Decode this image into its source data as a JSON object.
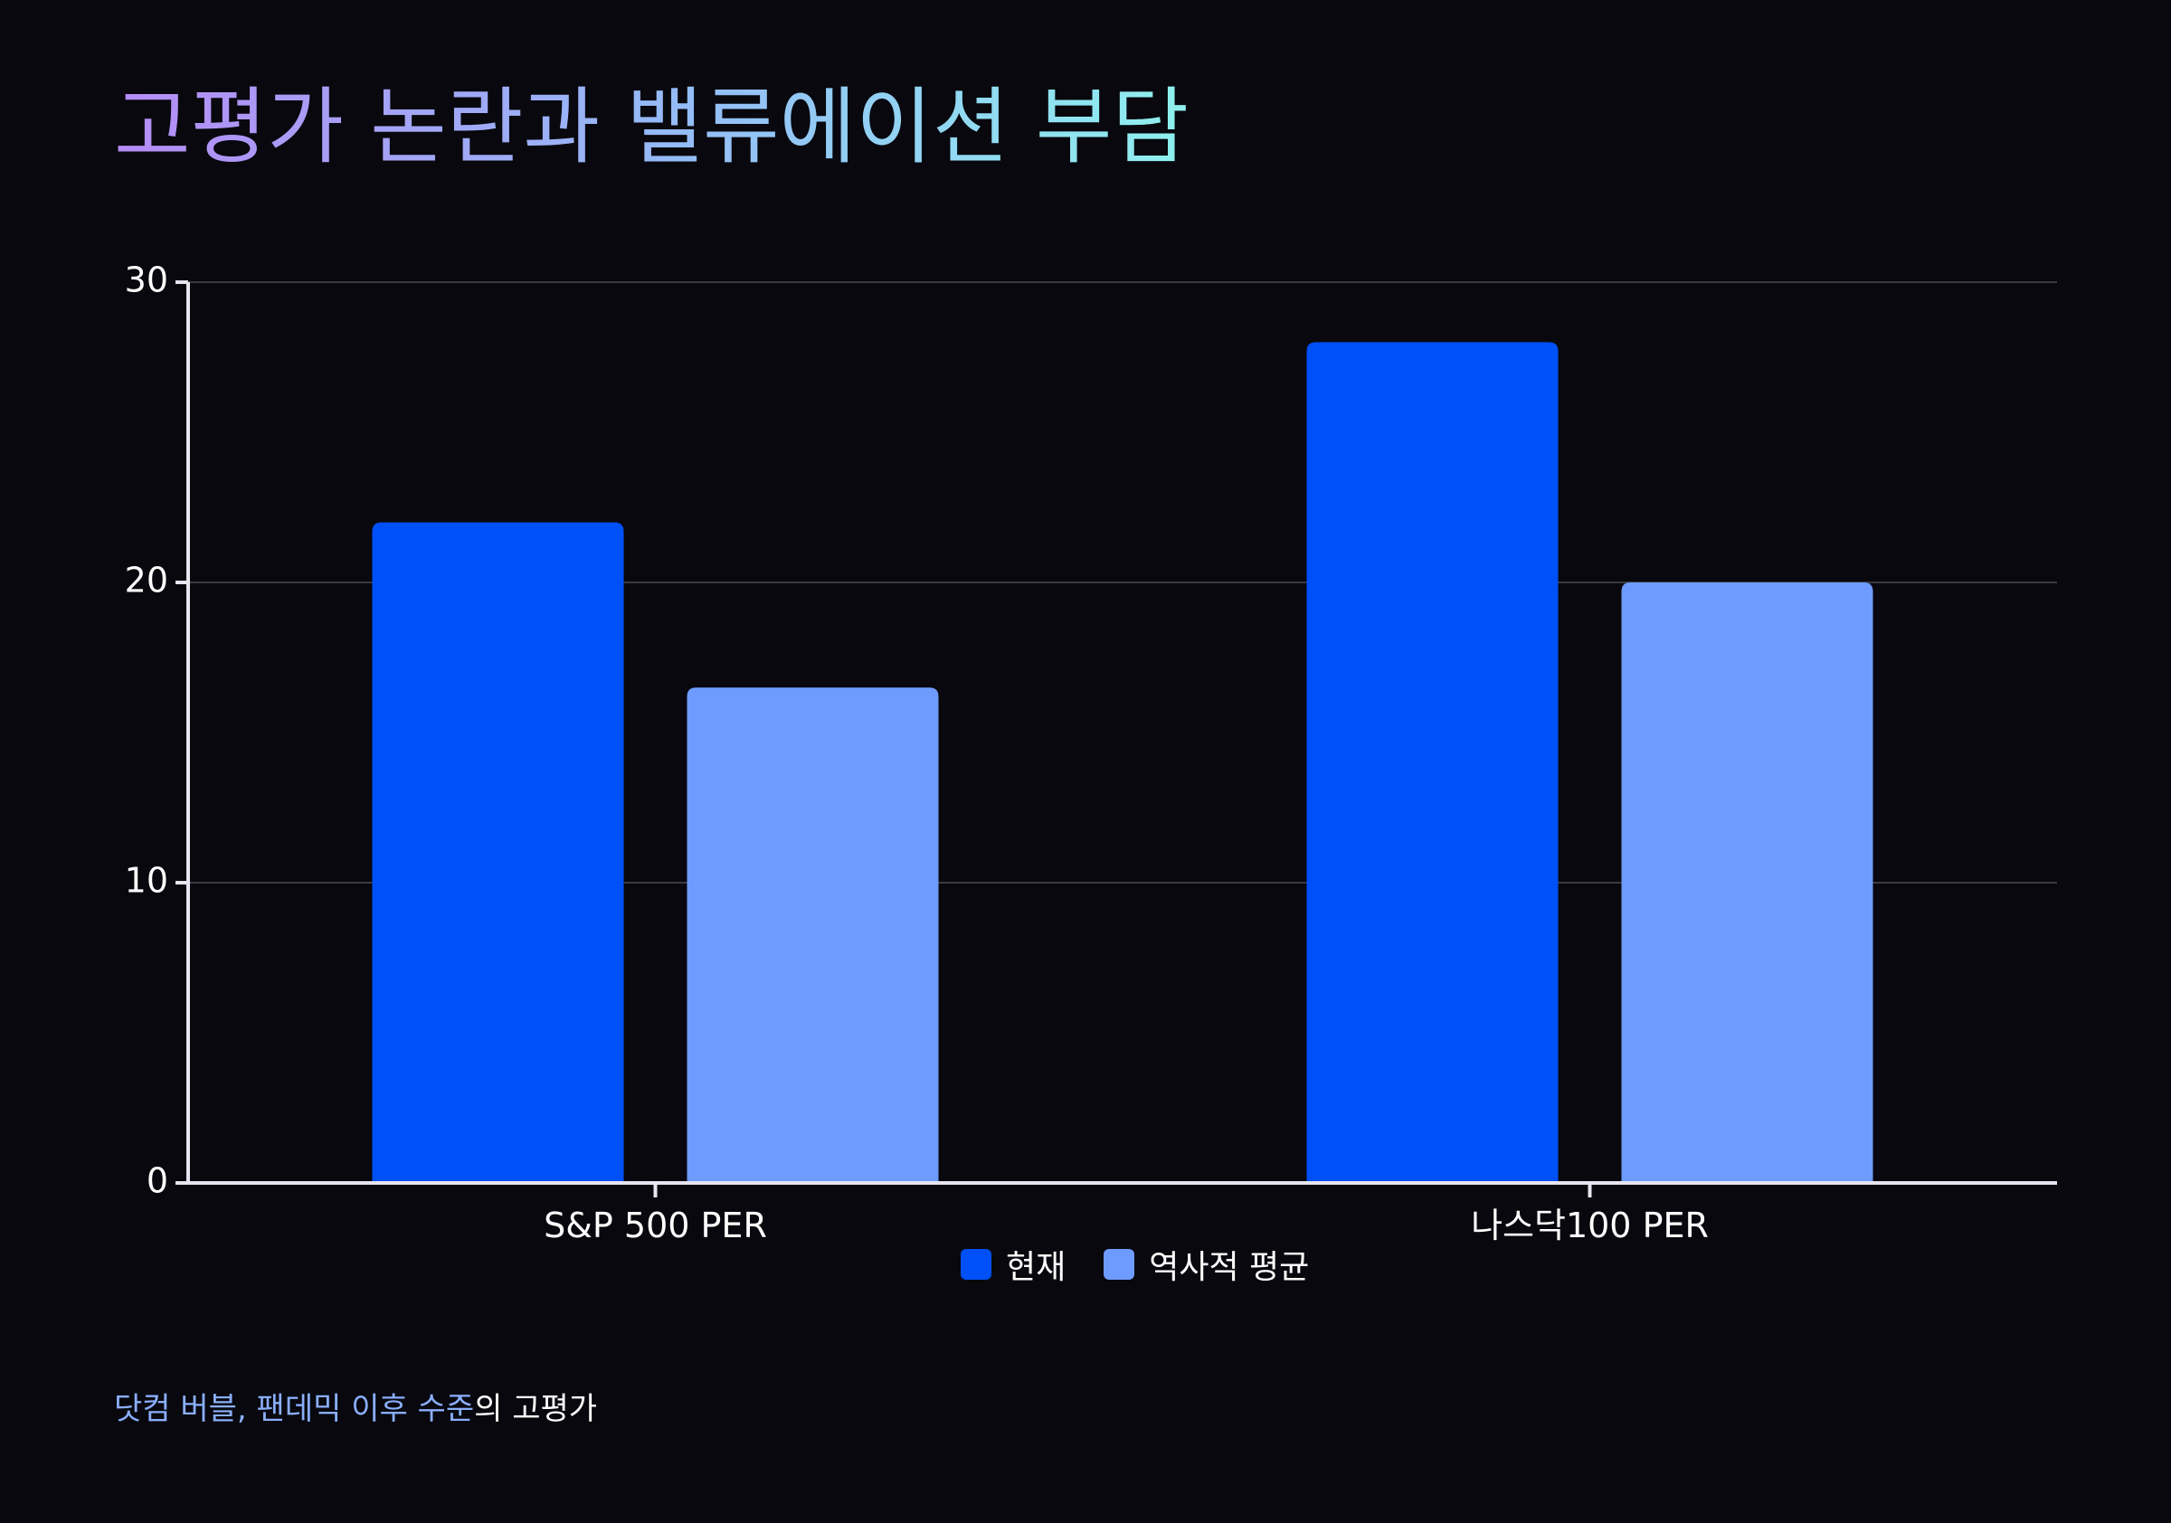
{
  "title": "고평가 논란과 밸류에이션 부담",
  "chart_data": {
    "type": "bar",
    "categories": [
      "S&P 500 PER",
      "나스닥100 PER"
    ],
    "series": [
      {
        "name": "현재",
        "values": [
          22,
          28
        ],
        "color": "#0050f8"
      },
      {
        "name": "역사적 평균",
        "values": [
          16.5,
          20
        ],
        "color": "#6e9bff"
      }
    ],
    "ylim": [
      0,
      30
    ],
    "yticks": [
      0,
      10,
      20,
      30
    ],
    "grid": true,
    "legend_position": "bottom-center",
    "xlabel": "",
    "ylabel": ""
  },
  "legend": {
    "current_label": "현재",
    "average_label": "역사적 평균"
  },
  "caption": {
    "highlight": "닷컴 버블, 팬데믹 이후 수준",
    "rest": "의 고평가"
  },
  "colors": {
    "background": "#08080e",
    "grid": "#3a3a42",
    "axis": "#e8e4f0"
  }
}
